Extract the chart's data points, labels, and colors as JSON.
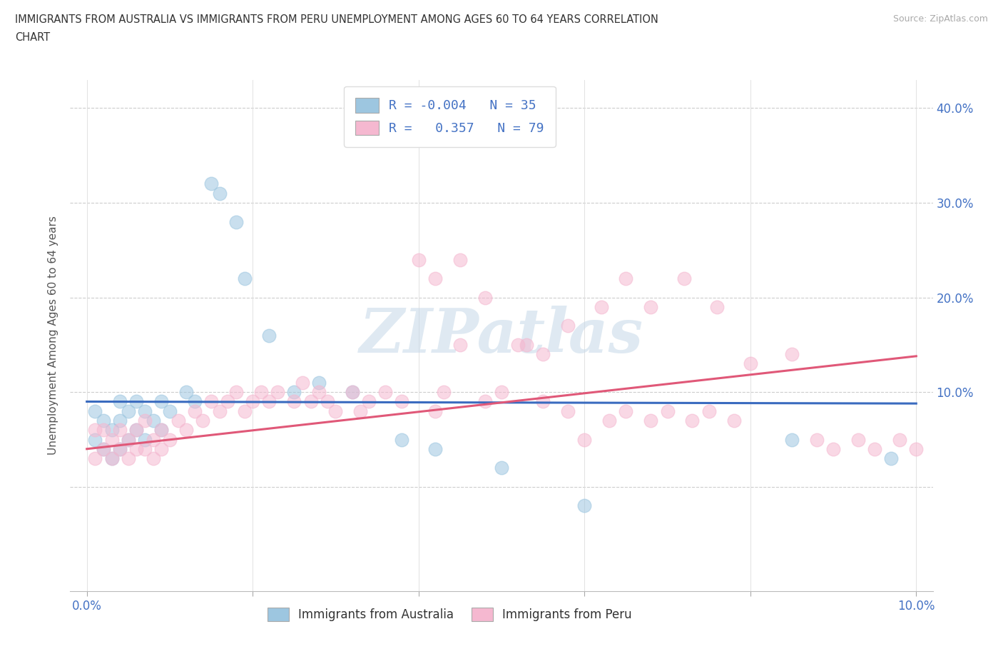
{
  "title_line1": "IMMIGRANTS FROM AUSTRALIA VS IMMIGRANTS FROM PERU UNEMPLOYMENT AMONG AGES 60 TO 64 YEARS CORRELATION",
  "title_line2": "CHART",
  "source": "Source: ZipAtlas.com",
  "ylabel": "Unemployment Among Ages 60 to 64 years",
  "xlim": [
    -0.002,
    0.102
  ],
  "ylim": [
    -0.11,
    0.43
  ],
  "xticks": [
    0.0,
    0.02,
    0.04,
    0.06,
    0.08,
    0.1
  ],
  "xtick_labels": [
    "0.0%",
    "",
    "",
    "",
    "",
    "10.0%"
  ],
  "ytick_positions": [
    0.0,
    0.1,
    0.2,
    0.3,
    0.4
  ],
  "ytick_labels": [
    "",
    "10.0%",
    "20.0%",
    "30.0%",
    "40.0%"
  ],
  "R_australia": -0.004,
  "N_australia": 35,
  "R_peru": 0.357,
  "N_peru": 79,
  "australia_color": "#9dc6e0",
  "peru_color": "#f5b8d0",
  "trendline_australia_color": "#3a6bbf",
  "trendline_peru_color": "#e05878",
  "watermark": "ZIPatlas",
  "aus_trendline_y0": 0.09,
  "aus_trendline_y1": 0.088,
  "peru_trendline_y0": 0.04,
  "peru_trendline_y1": 0.138,
  "australia_x": [
    0.001,
    0.001,
    0.002,
    0.002,
    0.003,
    0.003,
    0.004,
    0.004,
    0.004,
    0.005,
    0.005,
    0.006,
    0.006,
    0.007,
    0.007,
    0.008,
    0.009,
    0.009,
    0.01,
    0.012,
    0.013,
    0.015,
    0.016,
    0.018,
    0.019,
    0.022,
    0.025,
    0.028,
    0.032,
    0.038,
    0.042,
    0.05,
    0.06,
    0.085,
    0.097
  ],
  "australia_y": [
    0.05,
    0.08,
    0.04,
    0.07,
    0.03,
    0.06,
    0.04,
    0.07,
    0.09,
    0.05,
    0.08,
    0.06,
    0.09,
    0.05,
    0.08,
    0.07,
    0.09,
    0.06,
    0.08,
    0.1,
    0.09,
    0.32,
    0.31,
    0.28,
    0.22,
    0.16,
    0.1,
    0.11,
    0.1,
    0.05,
    0.04,
    0.02,
    -0.02,
    0.05,
    0.03
  ],
  "peru_x": [
    0.001,
    0.001,
    0.002,
    0.002,
    0.003,
    0.003,
    0.004,
    0.004,
    0.005,
    0.005,
    0.006,
    0.006,
    0.007,
    0.007,
    0.008,
    0.008,
    0.009,
    0.009,
    0.01,
    0.011,
    0.012,
    0.013,
    0.014,
    0.015,
    0.016,
    0.017,
    0.018,
    0.019,
    0.02,
    0.021,
    0.022,
    0.023,
    0.025,
    0.026,
    0.027,
    0.028,
    0.029,
    0.03,
    0.032,
    0.033,
    0.034,
    0.036,
    0.038,
    0.04,
    0.042,
    0.043,
    0.045,
    0.048,
    0.05,
    0.053,
    0.055,
    0.058,
    0.06,
    0.063,
    0.065,
    0.068,
    0.07,
    0.073,
    0.075,
    0.078,
    0.042,
    0.045,
    0.048,
    0.052,
    0.055,
    0.058,
    0.062,
    0.065,
    0.068,
    0.072,
    0.076,
    0.08,
    0.085,
    0.088,
    0.09,
    0.093,
    0.095,
    0.098,
    0.1
  ],
  "peru_y": [
    0.03,
    0.06,
    0.04,
    0.06,
    0.03,
    0.05,
    0.04,
    0.06,
    0.03,
    0.05,
    0.04,
    0.06,
    0.04,
    0.07,
    0.03,
    0.05,
    0.04,
    0.06,
    0.05,
    0.07,
    0.06,
    0.08,
    0.07,
    0.09,
    0.08,
    0.09,
    0.1,
    0.08,
    0.09,
    0.1,
    0.09,
    0.1,
    0.09,
    0.11,
    0.09,
    0.1,
    0.09,
    0.08,
    0.1,
    0.08,
    0.09,
    0.1,
    0.09,
    0.24,
    0.08,
    0.1,
    0.15,
    0.09,
    0.1,
    0.15,
    0.09,
    0.08,
    0.05,
    0.07,
    0.08,
    0.07,
    0.08,
    0.07,
    0.08,
    0.07,
    0.22,
    0.24,
    0.2,
    0.15,
    0.14,
    0.17,
    0.19,
    0.22,
    0.19,
    0.22,
    0.19,
    0.13,
    0.14,
    0.05,
    0.04,
    0.05,
    0.04,
    0.05,
    0.04
  ]
}
